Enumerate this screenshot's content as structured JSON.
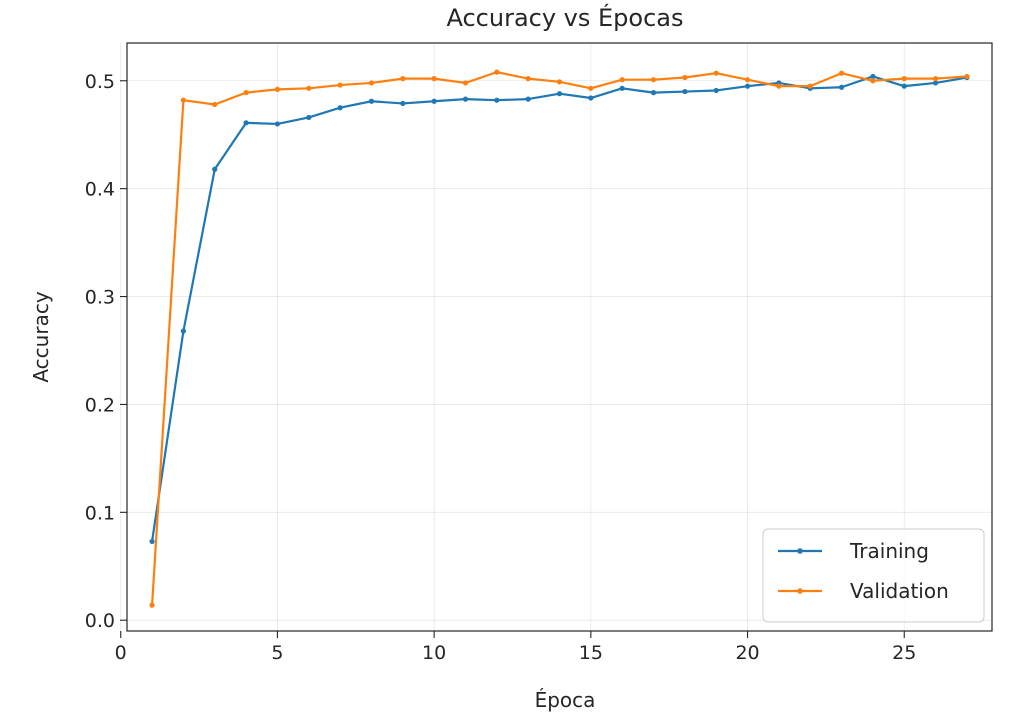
{
  "chart_data": {
    "type": "line",
    "title": "Accuracy vs Épocas",
    "xlabel": "Época",
    "ylabel": "Accuracy",
    "xlim": [
      0.2,
      27.8
    ],
    "ylim": [
      -0.01,
      0.535
    ],
    "xticks": [
      0,
      5,
      10,
      15,
      20,
      25
    ],
    "yticks": [
      0.0,
      0.1,
      0.2,
      0.3,
      0.4,
      0.5
    ],
    "xtick_labels": [
      "0",
      "5",
      "10",
      "15",
      "20",
      "25"
    ],
    "ytick_labels": [
      "0.0",
      "0.1",
      "0.2",
      "0.3",
      "0.4",
      "0.5"
    ],
    "grid": true,
    "legend_position": "lower-right",
    "x": [
      1,
      2,
      3,
      4,
      5,
      6,
      7,
      8,
      9,
      10,
      11,
      12,
      13,
      14,
      15,
      16,
      17,
      18,
      19,
      20,
      21,
      22,
      23,
      24,
      25,
      26,
      27
    ],
    "series": [
      {
        "name": "Training",
        "color": "#1f77b4",
        "values": [
          0.073,
          0.268,
          0.418,
          0.461,
          0.46,
          0.466,
          0.475,
          0.481,
          0.479,
          0.481,
          0.483,
          0.482,
          0.483,
          0.488,
          0.484,
          0.493,
          0.489,
          0.49,
          0.491,
          0.495,
          0.498,
          0.493,
          0.494,
          0.504,
          0.495,
          0.498,
          0.503
        ]
      },
      {
        "name": "Validation",
        "color": "#ff7f0e",
        "values": [
          0.014,
          0.482,
          0.478,
          0.489,
          0.492,
          0.493,
          0.496,
          0.498,
          0.502,
          0.502,
          0.498,
          0.508,
          0.502,
          0.499,
          0.493,
          0.501,
          0.501,
          0.503,
          0.507,
          0.501,
          0.495,
          0.495,
          0.507,
          0.5,
          0.502,
          0.502,
          0.504
        ]
      }
    ]
  }
}
